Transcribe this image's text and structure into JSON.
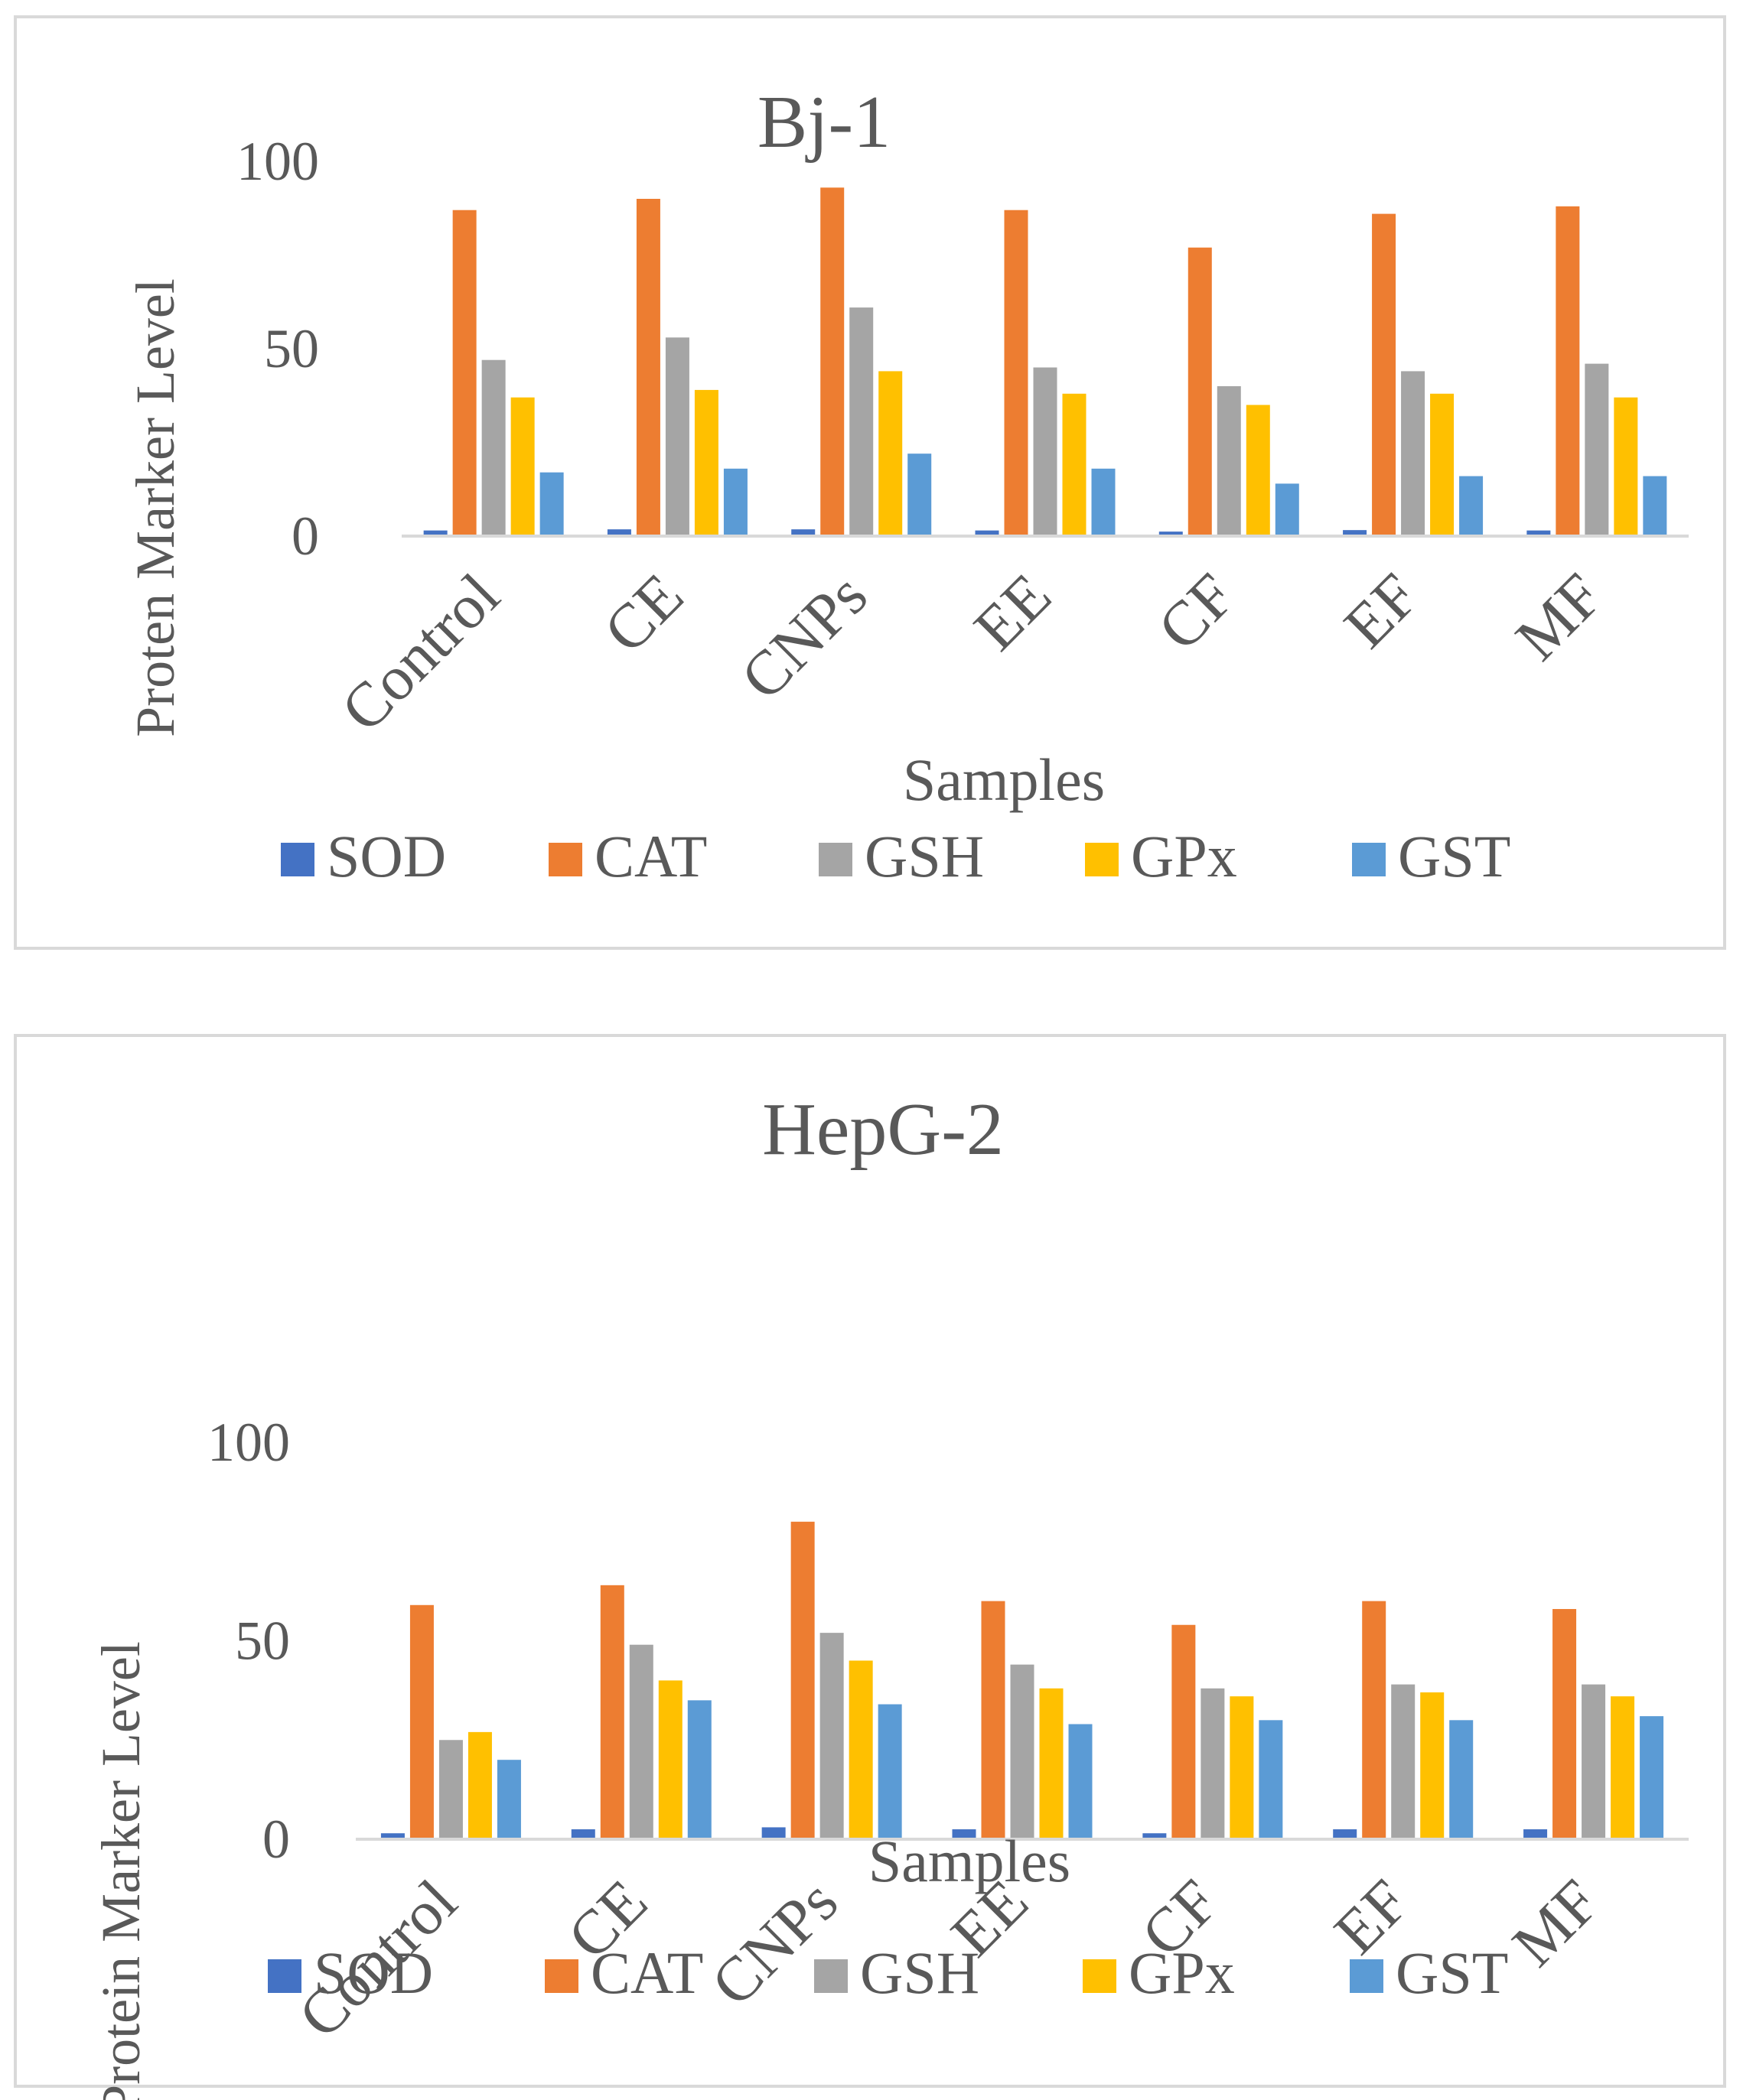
{
  "chart_data": [
    {
      "type": "bar",
      "title": "Bj-1",
      "xlabel": "Samples",
      "ylabel": "Proten Marker Level",
      "ylim": [
        0,
        100
      ],
      "yticks": [
        "0",
        "50",
        "100"
      ],
      "categories": [
        "Control",
        "CE",
        "CNPs",
        "EE",
        "CF",
        "EF",
        "MF"
      ],
      "legend_position": "bottom",
      "series": [
        {
          "name": "SOD",
          "color": "#4472c4",
          "values": [
            1.5,
            1.8,
            1.8,
            1.5,
            1.2,
            1.6,
            1.5
          ]
        },
        {
          "name": "CAT",
          "color": "#ed7d31",
          "values": [
            87,
            90,
            93,
            87,
            77,
            86,
            88
          ]
        },
        {
          "name": "GSH",
          "color": "#a5a5a5",
          "values": [
            47,
            53,
            61,
            45,
            40,
            44,
            46
          ]
        },
        {
          "name": "GPx",
          "color": "#ffc000",
          "values": [
            37,
            39,
            44,
            38,
            35,
            38,
            37
          ]
        },
        {
          "name": "GST",
          "color": "#5b9bd5",
          "values": [
            17,
            18,
            22,
            18,
            14,
            16,
            16
          ]
        }
      ]
    },
    {
      "type": "bar",
      "title": "HepG-2",
      "xlabel": "Samples",
      "ylabel": "Protein Marker Level",
      "ylim": [
        0,
        100
      ],
      "yticks": [
        "0",
        "50",
        "100"
      ],
      "categories": [
        "Control",
        "CE",
        "CNPs",
        "EE",
        "CF",
        "EF",
        "MF"
      ],
      "legend_position": "bottom",
      "series": [
        {
          "name": "SOD",
          "color": "#4472c4",
          "values": [
            1.5,
            2.5,
            3,
            2.5,
            1.5,
            2.5,
            2.5
          ]
        },
        {
          "name": "CAT",
          "color": "#ed7d31",
          "values": [
            59,
            64,
            80,
            60,
            54,
            60,
            58
          ]
        },
        {
          "name": "GSH",
          "color": "#a5a5a5",
          "values": [
            25,
            49,
            52,
            44,
            38,
            39,
            39
          ]
        },
        {
          "name": "GPx",
          "color": "#ffc000",
          "values": [
            27,
            40,
            45,
            38,
            36,
            37,
            36
          ]
        },
        {
          "name": "GST",
          "color": "#5b9bd5",
          "values": [
            20,
            35,
            34,
            29,
            30,
            30,
            31
          ]
        }
      ]
    }
  ]
}
